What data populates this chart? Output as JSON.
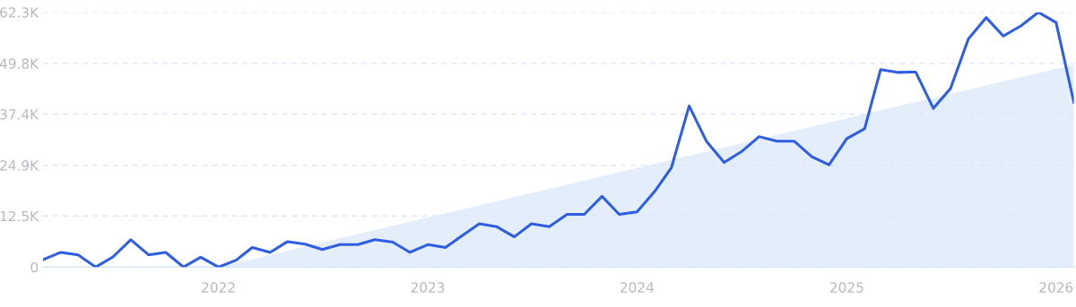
{
  "chart_data": {
    "type": "line",
    "x": [
      "2021-03",
      "2021-04",
      "2021-05",
      "2021-06",
      "2021-07",
      "2021-08",
      "2021-09",
      "2021-10",
      "2021-11",
      "2021-12",
      "2022-01",
      "2022-02",
      "2022-03",
      "2022-04",
      "2022-05",
      "2022-06",
      "2022-07",
      "2022-08",
      "2022-09",
      "2022-10",
      "2022-11",
      "2022-12",
      "2023-01",
      "2023-02",
      "2023-03",
      "2023-04",
      "2023-05",
      "2023-06",
      "2023-07",
      "2023-08",
      "2023-09",
      "2023-10",
      "2023-11",
      "2023-12",
      "2024-01",
      "2024-02",
      "2024-03",
      "2024-04",
      "2024-05",
      "2024-06",
      "2024-07",
      "2024-08",
      "2024-09",
      "2024-10",
      "2024-11",
      "2024-12",
      "2025-01",
      "2025-02",
      "2025-03",
      "2025-04",
      "2025-05",
      "2025-06",
      "2025-07",
      "2025-08",
      "2025-09",
      "2025-10",
      "2025-11",
      "2025-12",
      "2026-01",
      "2026-02"
    ],
    "series": [
      {
        "type": "area",
        "color": "#e4eefb",
        "x": [
          "2022-01",
          "2026-02"
        ],
        "values": [
          0,
          49500
        ]
      },
      {
        "color": "#2f5fe0",
        "values": [
          1800,
          3600,
          3000,
          0,
          2500,
          6700,
          3000,
          3600,
          0,
          2400,
          0,
          1700,
          4800,
          3600,
          6200,
          5600,
          4300,
          5500,
          5500,
          6700,
          6100,
          3600,
          5500,
          4800,
          7600,
          10600,
          9900,
          7400,
          10600,
          9900,
          12900,
          12900,
          17300,
          12900,
          13500,
          18500,
          24300,
          39400,
          30800,
          25600,
          28200,
          31900,
          30800,
          30800,
          27000,
          25000,
          31400,
          33800,
          48300,
          47600,
          47700,
          38800,
          43700,
          55800,
          61000,
          56500,
          59000,
          62300,
          59800,
          40300
        ]
      }
    ],
    "xlim": [
      "2021-03",
      "2026-02"
    ],
    "xticks": [
      {
        "value": "2022-01",
        "label": "2022"
      },
      {
        "value": "2023-01",
        "label": "2023"
      },
      {
        "value": "2024-01",
        "label": "2024"
      },
      {
        "value": "2025-01",
        "label": "2025"
      },
      {
        "value": "2026-01",
        "label": "2026"
      }
    ],
    "ylim": [
      0,
      62300
    ],
    "yticks": [
      0,
      {
        "value": 12500,
        "label": "12.5K"
      },
      {
        "value": 24900,
        "label": "24.9K"
      },
      {
        "value": 37400,
        "label": "37.4K"
      },
      {
        "value": 49800,
        "label": "49.8K"
      },
      {
        "value": 62300,
        "label": "62.3K"
      }
    ],
    "grid": "y",
    "legend": false,
    "marker": "none",
    "line_style": "solid"
  }
}
